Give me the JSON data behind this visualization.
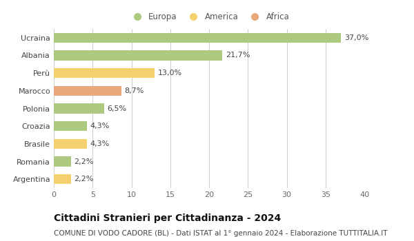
{
  "categories": [
    "Ucraina",
    "Albania",
    "Perù",
    "Marocco",
    "Polonia",
    "Croazia",
    "Brasile",
    "Romania",
    "Argentina"
  ],
  "values": [
    37.0,
    21.7,
    13.0,
    8.7,
    6.5,
    4.3,
    4.3,
    2.2,
    2.2
  ],
  "labels": [
    "37,0%",
    "21,7%",
    "13,0%",
    "8,7%",
    "6,5%",
    "4,3%",
    "4,3%",
    "2,2%",
    "2,2%"
  ],
  "colors": [
    "#adc97f",
    "#adc97f",
    "#f5d06e",
    "#e8a87c",
    "#adc97f",
    "#adc97f",
    "#f5d06e",
    "#adc97f",
    "#f5d06e"
  ],
  "legend_items": [
    {
      "label": "Europa",
      "color": "#adc97f"
    },
    {
      "label": "America",
      "color": "#f5d06e"
    },
    {
      "label": "Africa",
      "color": "#e8a87c"
    }
  ],
  "xlim": [
    0,
    40
  ],
  "xticks": [
    0,
    5,
    10,
    15,
    20,
    25,
    30,
    35,
    40
  ],
  "title": "Cittadini Stranieri per Cittadinanza - 2024",
  "subtitle": "COMUNE DI VODO CADORE (BL) - Dati ISTAT al 1° gennaio 2024 - Elaborazione TUTTITALIA.IT",
  "background_color": "#ffffff",
  "plot_bg_color": "#ffffff",
  "grid_color": "#cccccc",
  "bar_height": 0.55,
  "title_fontsize": 10,
  "subtitle_fontsize": 7.5,
  "label_fontsize": 8,
  "tick_fontsize": 8,
  "legend_fontsize": 8.5
}
